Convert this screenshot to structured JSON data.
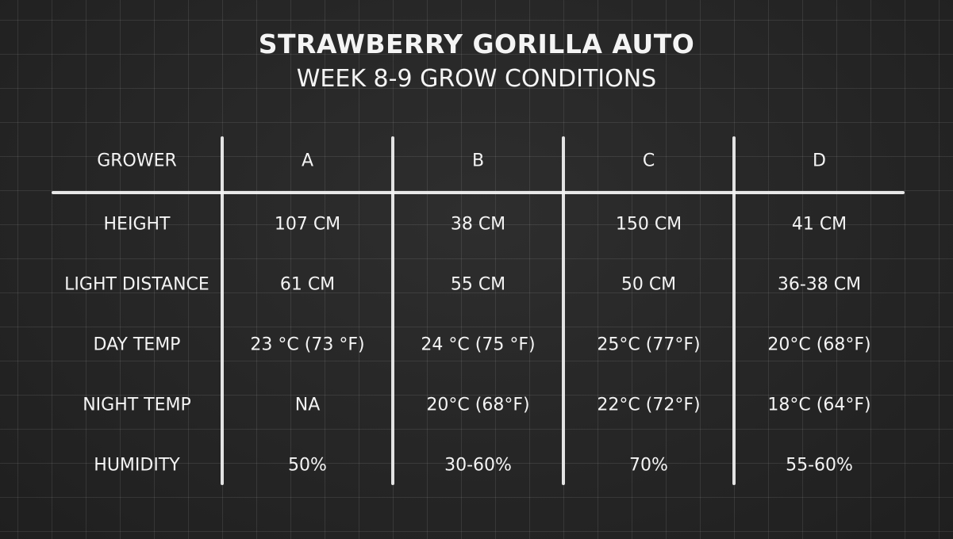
{
  "title": "STRAWBERRY GORILLA AUTO",
  "subtitle": "WEEK 8-9 GROW CONDITIONS",
  "chart_data": {
    "type": "table",
    "title": "STRAWBERRY GORILLA AUTO",
    "subtitle": "WEEK 8-9 GROW CONDITIONS",
    "columns": [
      "GROWER",
      "A",
      "B",
      "C",
      "D"
    ],
    "rows": [
      [
        "HEIGHT",
        "107 CM",
        "38 CM",
        "150 CM",
        "41 CM"
      ],
      [
        "LIGHT DISTANCE",
        "61 CM",
        "55 CM",
        "50 CM",
        "36-38 CM"
      ],
      [
        "DAY TEMP",
        "23 °C (73 °F)",
        "24 °C (75 °F)",
        "25°C (77°F)",
        "20°C (68°F)"
      ],
      [
        "NIGHT TEMP",
        "NA",
        "20°C (68°F)",
        "22°C (72°F)",
        "18°C (64°F)"
      ],
      [
        "HUMIDITY",
        "50%",
        "30-60%",
        "70%",
        "55-60%"
      ]
    ]
  }
}
